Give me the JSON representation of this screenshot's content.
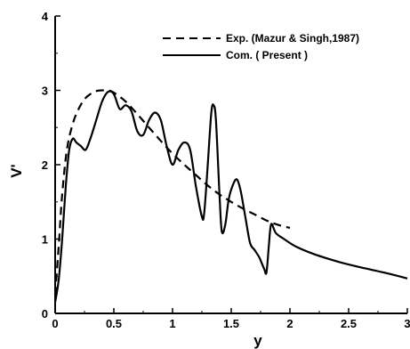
{
  "chart_data": {
    "type": "line",
    "xlabel": "y",
    "ylabel": "V'",
    "xlim": [
      0,
      3
    ],
    "ylim": [
      0,
      4
    ],
    "x_ticks": [
      0,
      0.5,
      1,
      1.5,
      2,
      2.5,
      3
    ],
    "x_tick_labels": [
      "0",
      "0.5",
      "1",
      "1.5",
      "2",
      "2.5",
      "3"
    ],
    "y_ticks": [
      0,
      1,
      2,
      3,
      4
    ],
    "y_tick_labels": [
      "0",
      "1",
      "2",
      "3",
      "4"
    ],
    "grid": false,
    "legend_position": "top-right",
    "series": [
      {
        "name": "Exp. (Mazur & Singh,1987)",
        "style": "dashed",
        "color": "#000000",
        "x": [
          0,
          0.03,
          0.06,
          0.1,
          0.15,
          0.2,
          0.25,
          0.3,
          0.35,
          0.4,
          0.45,
          0.5,
          0.6,
          0.7,
          0.8,
          0.9,
          1.0,
          1.1,
          1.2,
          1.3,
          1.4,
          1.5,
          1.6,
          1.7,
          1.8,
          1.9,
          2.0
        ],
        "y": [
          0.25,
          0.9,
          1.6,
          2.2,
          2.55,
          2.75,
          2.88,
          2.95,
          2.99,
          3.0,
          3.0,
          2.97,
          2.85,
          2.68,
          2.5,
          2.32,
          2.15,
          2.0,
          1.86,
          1.72,
          1.6,
          1.5,
          1.41,
          1.33,
          1.25,
          1.19,
          1.15
        ]
      },
      {
        "name": "Com. ( Present )",
        "style": "solid",
        "color": "#000000",
        "x": [
          0,
          0.03,
          0.06,
          0.09,
          0.12,
          0.15,
          0.18,
          0.22,
          0.26,
          0.3,
          0.35,
          0.4,
          0.45,
          0.5,
          0.55,
          0.6,
          0.65,
          0.7,
          0.75,
          0.8,
          0.85,
          0.9,
          0.95,
          1.0,
          1.05,
          1.1,
          1.15,
          1.2,
          1.25,
          1.27,
          1.3,
          1.33,
          1.35,
          1.37,
          1.4,
          1.42,
          1.45,
          1.48,
          1.52,
          1.55,
          1.58,
          1.62,
          1.66,
          1.7,
          1.74,
          1.78,
          1.8,
          1.82,
          1.84,
          1.88,
          1.95,
          2.05,
          2.2,
          2.4,
          2.6,
          2.8,
          3.0
        ],
        "y": [
          0.15,
          0.45,
          1.0,
          1.7,
          2.2,
          2.35,
          2.3,
          2.25,
          2.2,
          2.35,
          2.6,
          2.85,
          2.98,
          2.95,
          2.75,
          2.8,
          2.72,
          2.45,
          2.4,
          2.6,
          2.7,
          2.6,
          2.25,
          2.0,
          2.2,
          2.3,
          2.2,
          1.7,
          1.3,
          1.35,
          2.0,
          2.7,
          2.8,
          2.6,
          1.6,
          1.1,
          1.2,
          1.55,
          1.75,
          1.8,
          1.65,
          1.3,
          0.95,
          0.85,
          0.75,
          0.6,
          0.55,
          0.9,
          1.2,
          1.08,
          1.0,
          0.9,
          0.8,
          0.7,
          0.62,
          0.55,
          0.47
        ]
      }
    ]
  }
}
